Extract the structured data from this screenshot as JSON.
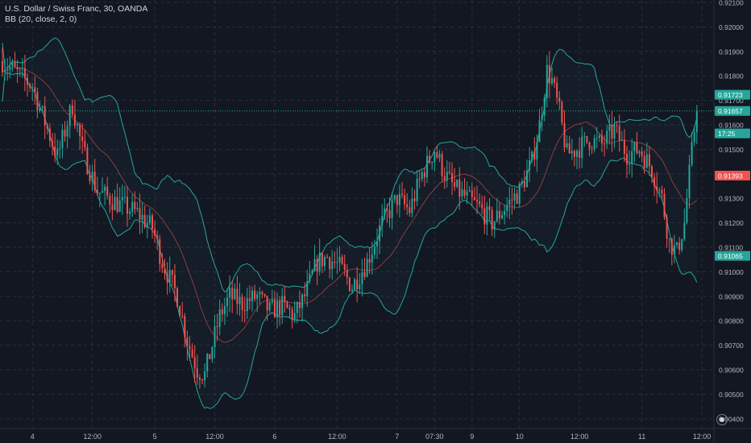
{
  "header": {
    "symbol_line": "U.S. Dollar / Swiss Franc, 30, OANDA",
    "indicator_line": "BB (20, close, 2, 0)"
  },
  "colors": {
    "background": "#131722",
    "grid": "#2a2e39",
    "up": "#26a69a",
    "down": "#ef5350",
    "band": "#26a69a",
    "basis": "#8e3b43",
    "last_price_line": "#26a69a"
  },
  "icons": {
    "settings": "scale-settings-icon"
  },
  "chart_data": {
    "type": "candlestick",
    "title": "U.S. Dollar / Swiss Franc, 30, OANDA",
    "ylim": [
      0.9036,
      0.9211
    ],
    "y_ticks": [
      "0.92100",
      "0.92000",
      "0.91900",
      "0.91800",
      "0.91700",
      "0.91600",
      "0.91500",
      "0.91400",
      "0.91300",
      "0.91200",
      "0.91100",
      "0.91000",
      "0.90900",
      "0.90800",
      "0.90700",
      "0.90600",
      "0.90500",
      "0.90400"
    ],
    "x_ticks": [
      {
        "label": "4",
        "index": 12
      },
      {
        "label": "12:00",
        "index": 36
      },
      {
        "label": "5",
        "index": 61
      },
      {
        "label": "12:00",
        "index": 85
      },
      {
        "label": "6",
        "index": 109
      },
      {
        "label": "12:00",
        "index": 134
      },
      {
        "label": "7",
        "index": 158
      },
      {
        "label": "07:30",
        "index": 173
      },
      {
        "label": "9",
        "index": 188
      },
      {
        "label": "10",
        "index": 207
      },
      {
        "label": "12:00",
        "index": 231
      },
      {
        "label": "11",
        "index": 256
      },
      {
        "label": "12:00",
        "index": 280
      }
    ],
    "price_labels": [
      {
        "label": "0.91723",
        "value": 0.91723,
        "color": "#26a69a"
      },
      {
        "label": "0.91657",
        "value": 0.91657,
        "color": "#26a69a"
      },
      {
        "label": "17:25",
        "value": 0.91565,
        "color": "#26a69a"
      },
      {
        "label": "0.91393",
        "value": 0.91393,
        "color": "#ef5350"
      },
      {
        "label": "0.91065",
        "value": 0.91065,
        "color": "#26a69a"
      }
    ],
    "last_price": 0.91657,
    "bollinger": {
      "length": 20,
      "source": "close",
      "mult": 2,
      "offset": 0
    },
    "anchors": [
      [
        0,
        0.9186
      ],
      [
        6,
        0.9181
      ],
      [
        12,
        0.9176
      ],
      [
        16,
        0.9164
      ],
      [
        22,
        0.9147
      ],
      [
        28,
        0.9168
      ],
      [
        32,
        0.915
      ],
      [
        38,
        0.9133
      ],
      [
        46,
        0.9128
      ],
      [
        54,
        0.9124
      ],
      [
        60,
        0.9118
      ],
      [
        64,
        0.9104
      ],
      [
        70,
        0.909
      ],
      [
        74,
        0.9072
      ],
      [
        78,
        0.906
      ],
      [
        81,
        0.9058
      ],
      [
        84,
        0.907
      ],
      [
        87,
        0.9082
      ],
      [
        91,
        0.909
      ],
      [
        96,
        0.9087
      ],
      [
        102,
        0.909
      ],
      [
        107,
        0.9084
      ],
      [
        112,
        0.9086
      ],
      [
        117,
        0.9082
      ],
      [
        121,
        0.909
      ],
      [
        126,
        0.9104
      ],
      [
        130,
        0.9106
      ],
      [
        135,
        0.9102
      ],
      [
        140,
        0.9094
      ],
      [
        146,
        0.9104
      ],
      [
        152,
        0.912
      ],
      [
        158,
        0.913
      ],
      [
        163,
        0.9125
      ],
      [
        168,
        0.914
      ],
      [
        173,
        0.915
      ],
      [
        177,
        0.914
      ],
      [
        181,
        0.9134
      ],
      [
        186,
        0.913
      ],
      [
        191,
        0.9126
      ],
      [
        196,
        0.912
      ],
      [
        201,
        0.9126
      ],
      [
        207,
        0.9133
      ],
      [
        212,
        0.9145
      ],
      [
        215,
        0.916
      ],
      [
        218,
        0.9182
      ],
      [
        220,
        0.9178
      ],
      [
        223,
        0.9165
      ],
      [
        226,
        0.9148
      ],
      [
        230,
        0.915
      ],
      [
        235,
        0.9154
      ],
      [
        240,
        0.9152
      ],
      [
        245,
        0.9158
      ],
      [
        250,
        0.9148
      ],
      [
        255,
        0.915
      ],
      [
        260,
        0.9142
      ],
      [
        264,
        0.913
      ],
      [
        267,
        0.9112
      ],
      [
        270,
        0.9108
      ],
      [
        273,
        0.912
      ],
      [
        275,
        0.914
      ],
      [
        277,
        0.9158
      ],
      [
        278,
        0.91657
      ]
    ]
  }
}
